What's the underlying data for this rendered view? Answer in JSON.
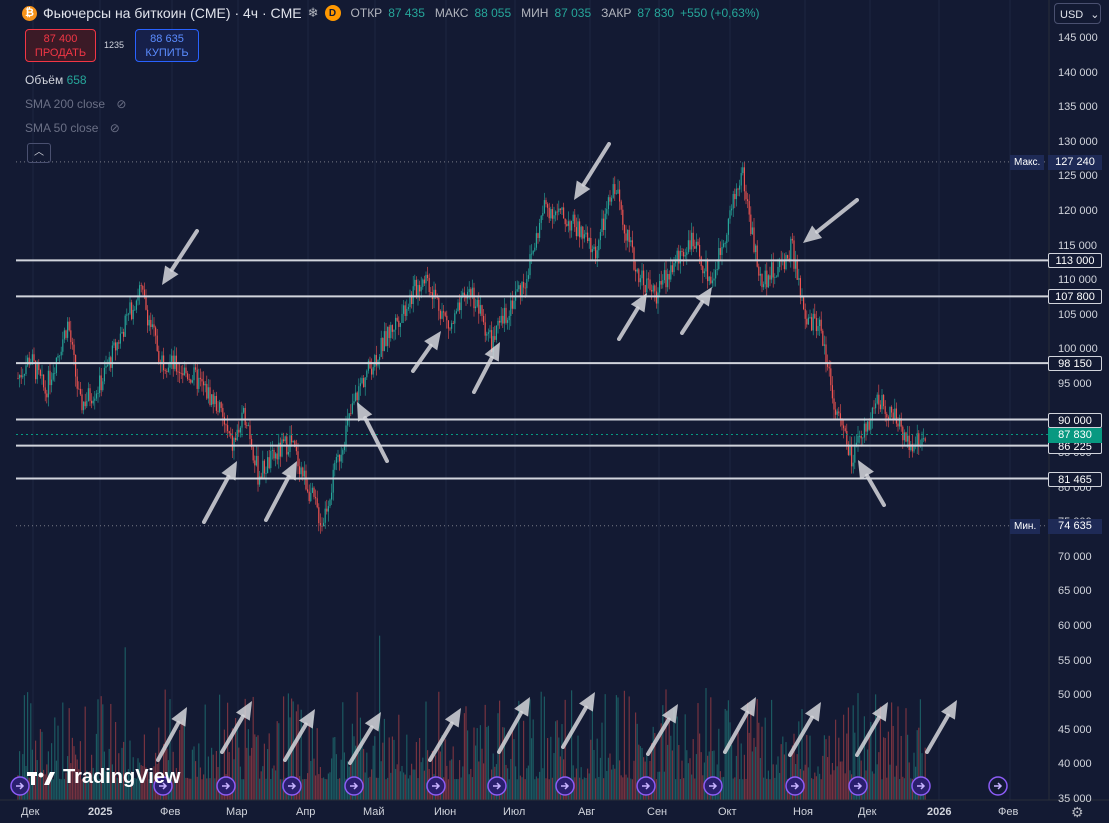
{
  "header": {
    "title": "Фьючерсы на биткоин (CME) · 4ч · CME",
    "symbol_glyph": "₿",
    "data_badge": "D",
    "open_label": "ОТКР",
    "open_value": "87 435",
    "high_label": "МАКС",
    "high_value": "88 055",
    "low_label": "МИН",
    "low_value": "87 035",
    "close_label": "ЗАКР",
    "close_value": "87 830",
    "change": "+550 (+0,63%)"
  },
  "trade": {
    "sell_price": "87 400",
    "sell_label": "ПРОДАТЬ",
    "spread": "1235",
    "buy_price": "88 635",
    "buy_label": "КУПИТЬ"
  },
  "indicators": {
    "volume_label": "Объём",
    "volume_value": "658",
    "sma200": "SMA 200 close",
    "sma50": "SMA 50 close"
  },
  "currency": "USD",
  "branding": "TradingView",
  "colors": {
    "up": "#26a69a",
    "down": "#ef5350",
    "background": "#131a33",
    "levels": "#d1d4dc"
  },
  "icons": [
    "bitcoin-icon",
    "snowflake-icon",
    "eye-off-icon",
    "chevron-up-icon",
    "gear-icon",
    "dividends-icon"
  ],
  "chart_data": {
    "type": "candlestick",
    "timeframe": "4h",
    "y_axis": {
      "side": "right",
      "ylim": [
        35000,
        147000
      ],
      "ticks": [
        "145 000",
        "140 000",
        "135 000",
        "130 000",
        "125 000",
        "120 000",
        "115 000",
        "110 000",
        "105 000",
        "100 000",
        "95 000",
        "90 000",
        "85 000",
        "80 000",
        "75 000",
        "70 000",
        "65 000",
        "60 000",
        "55 000",
        "50 000",
        "45 000",
        "40 000",
        "35 000"
      ]
    },
    "x_axis": {
      "ticks": [
        "Дек",
        "2025",
        "Фев",
        "Мар",
        "Апр",
        "Май",
        "Июн",
        "Июл",
        "Авг",
        "Сен",
        "Окт",
        "Ноя",
        "Дек",
        "2026",
        "Фев"
      ]
    },
    "horizontal_levels": [
      113000,
      107800,
      98150,
      90000,
      86225,
      81465
    ],
    "level_labels": [
      "113 000",
      "107 800",
      "98 150",
      "90 000",
      "86 225",
      "81 465"
    ],
    "last_price": 87830,
    "last_price_label": "87 830",
    "max_label": "Макс.",
    "max_value": 127240,
    "max_value_label": "127 240",
    "min_label": "Мин.",
    "min_value": 74635,
    "min_value_label": "74 635",
    "price_path": [
      [
        "Дек",
        96000
      ],
      [
        "Дек",
        99000
      ],
      [
        "2025",
        94000
      ],
      [
        "2025",
        104000
      ],
      [
        "2025",
        92000
      ],
      [
        "Фев",
        109000
      ],
      [
        "Фев",
        99000
      ],
      [
        "Фев",
        96000
      ],
      [
        "Мар",
        86000
      ],
      [
        "Мар",
        93000
      ],
      [
        "Мар",
        82000
      ],
      [
        "Апр",
        87000
      ],
      [
        "Апр",
        75000
      ],
      [
        "Апр",
        87000
      ],
      [
        "Май",
        95000
      ],
      [
        "Май",
        104000
      ],
      [
        "Май",
        111000
      ],
      [
        "Июн",
        103000
      ],
      [
        "Июн",
        109000
      ],
      [
        "Июн",
        101000
      ],
      [
        "Июл",
        108000
      ],
      [
        "Июл",
        110000
      ],
      [
        "Июл",
        122000
      ],
      [
        "Авг",
        115000
      ],
      [
        "Авг",
        124000
      ],
      [
        "Авг",
        113000
      ],
      [
        "Сен",
        108000
      ],
      [
        "Сен",
        116000
      ],
      [
        "Окт",
        111000
      ],
      [
        "Окт",
        127000
      ],
      [
        "Окт",
        110000
      ],
      [
        "Окт",
        115000
      ],
      [
        "Ноя",
        103000
      ],
      [
        "Ноя",
        101000
      ],
      [
        "Ноя",
        88000
      ],
      [
        "Дек",
        83000
      ],
      [
        "Дек",
        93000
      ],
      [
        "Дек",
        86500
      ],
      [
        "Дек",
        87830
      ]
    ],
    "volume_max": 64000
  }
}
